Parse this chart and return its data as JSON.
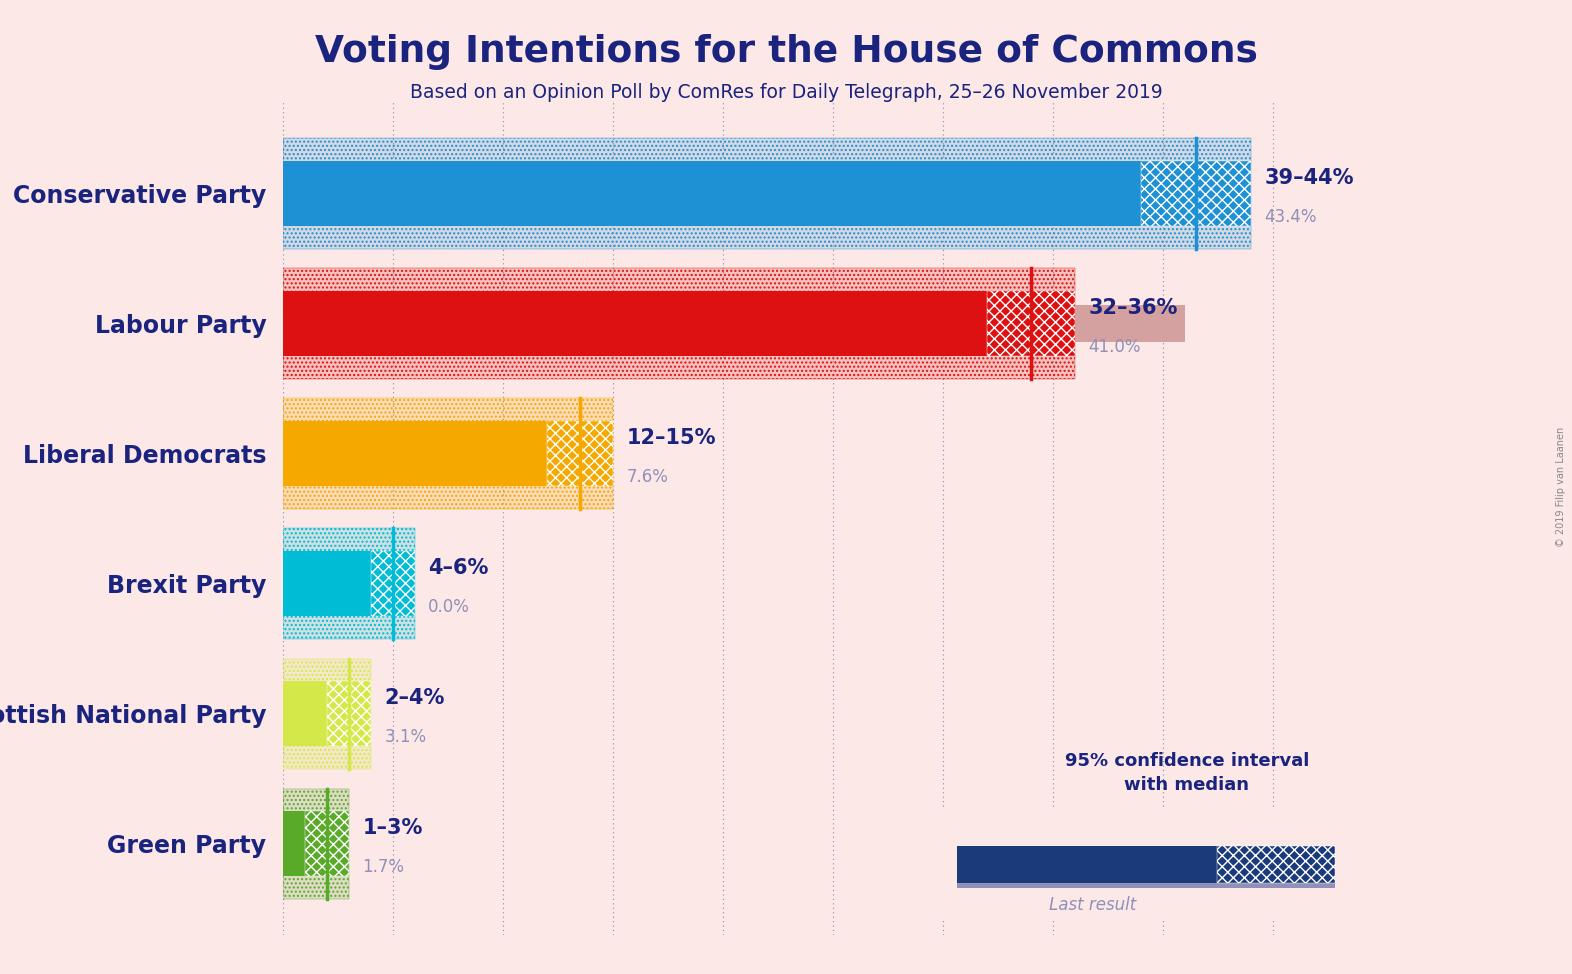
{
  "title": "Voting Intentions for the House of Commons",
  "subtitle": "Based on an Opinion Poll by ComRes for Daily Telegraph, 25–26 November 2019",
  "copyright": "© 2019 Filip van Laanen",
  "background_color": "#fce8e6",
  "parties": [
    {
      "name": "Conservative Party",
      "color": "#1e90d4",
      "last_color": "#a8c8e0",
      "ci_low": 39,
      "ci_high": 44,
      "median": 41.5,
      "last_result": 43.4,
      "label": "39–44%",
      "last_label": "43.4%"
    },
    {
      "name": "Labour Party",
      "color": "#dd1111",
      "last_color": "#d4a0a0",
      "ci_low": 32,
      "ci_high": 36,
      "median": 34,
      "last_result": 41.0,
      "label": "32–36%",
      "last_label": "41.0%"
    },
    {
      "name": "Liberal Democrats",
      "color": "#f5a800",
      "last_color": "#e0c880",
      "ci_low": 12,
      "ci_high": 15,
      "median": 13.5,
      "last_result": 7.6,
      "label": "12–15%",
      "last_label": "7.6%"
    },
    {
      "name": "Brexit Party",
      "color": "#00bcd4",
      "last_color": "#a0d8e0",
      "ci_low": 4,
      "ci_high": 6,
      "median": 5,
      "last_result": 0.0,
      "label": "4–6%",
      "last_label": "0.0%"
    },
    {
      "name": "Scottish National Party",
      "color": "#d4e84a",
      "last_color": "#d4d890",
      "ci_low": 2,
      "ci_high": 4,
      "median": 3,
      "last_result": 3.1,
      "label": "2–4%",
      "last_label": "3.1%"
    },
    {
      "name": "Green Party",
      "color": "#5aaa2a",
      "last_color": "#8cbc70",
      "ci_low": 1,
      "ci_high": 3,
      "median": 2,
      "last_result": 1.7,
      "label": "1–3%",
      "last_label": "1.7%"
    }
  ],
  "xlim_max": 50,
  "title_color": "#1a237e",
  "subtitle_color": "#1a237e",
  "party_label_color": "#1a237e",
  "ci_label_color": "#1a237e",
  "last_label_color": "#9090b8",
  "legend_ci_color": "#1a3a7a",
  "legend_last_color": "#9090b8",
  "dot_grid_color": "#1a237e"
}
